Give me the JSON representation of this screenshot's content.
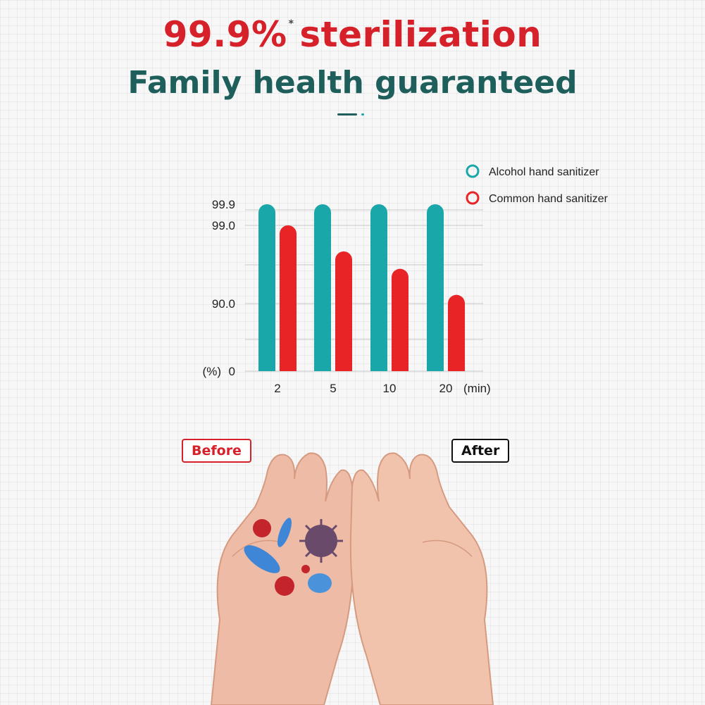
{
  "header": {
    "headline": "99.9%",
    "headline_mark": "*",
    "headline_rest": "sterilization",
    "subheadline": "Family health guaranteed"
  },
  "chart_data": {
    "type": "bar",
    "categories": [
      "2",
      "5",
      "10",
      "20"
    ],
    "x_unit": "(min)",
    "y_unit": "(%)",
    "yticks": [
      "0",
      "90.0",
      "99.0",
      "99.9"
    ],
    "series": [
      {
        "name": "Alcohol hand sanitizer",
        "values": [
          99.9,
          99.9,
          99.9,
          99.9
        ],
        "color": "#1aa7aa"
      },
      {
        "name": "Common hand sanitizer",
        "values": [
          99.0,
          96.0,
          94.0,
          91.0
        ],
        "color": "#e82427"
      }
    ],
    "legend_position": "top-right",
    "grid": true
  },
  "compare": {
    "before_label": "Before",
    "after_label": "After"
  },
  "colors": {
    "accent_red": "#d6202a",
    "accent_teal": "#1aa7aa",
    "title_green": "#1e5f5c"
  }
}
